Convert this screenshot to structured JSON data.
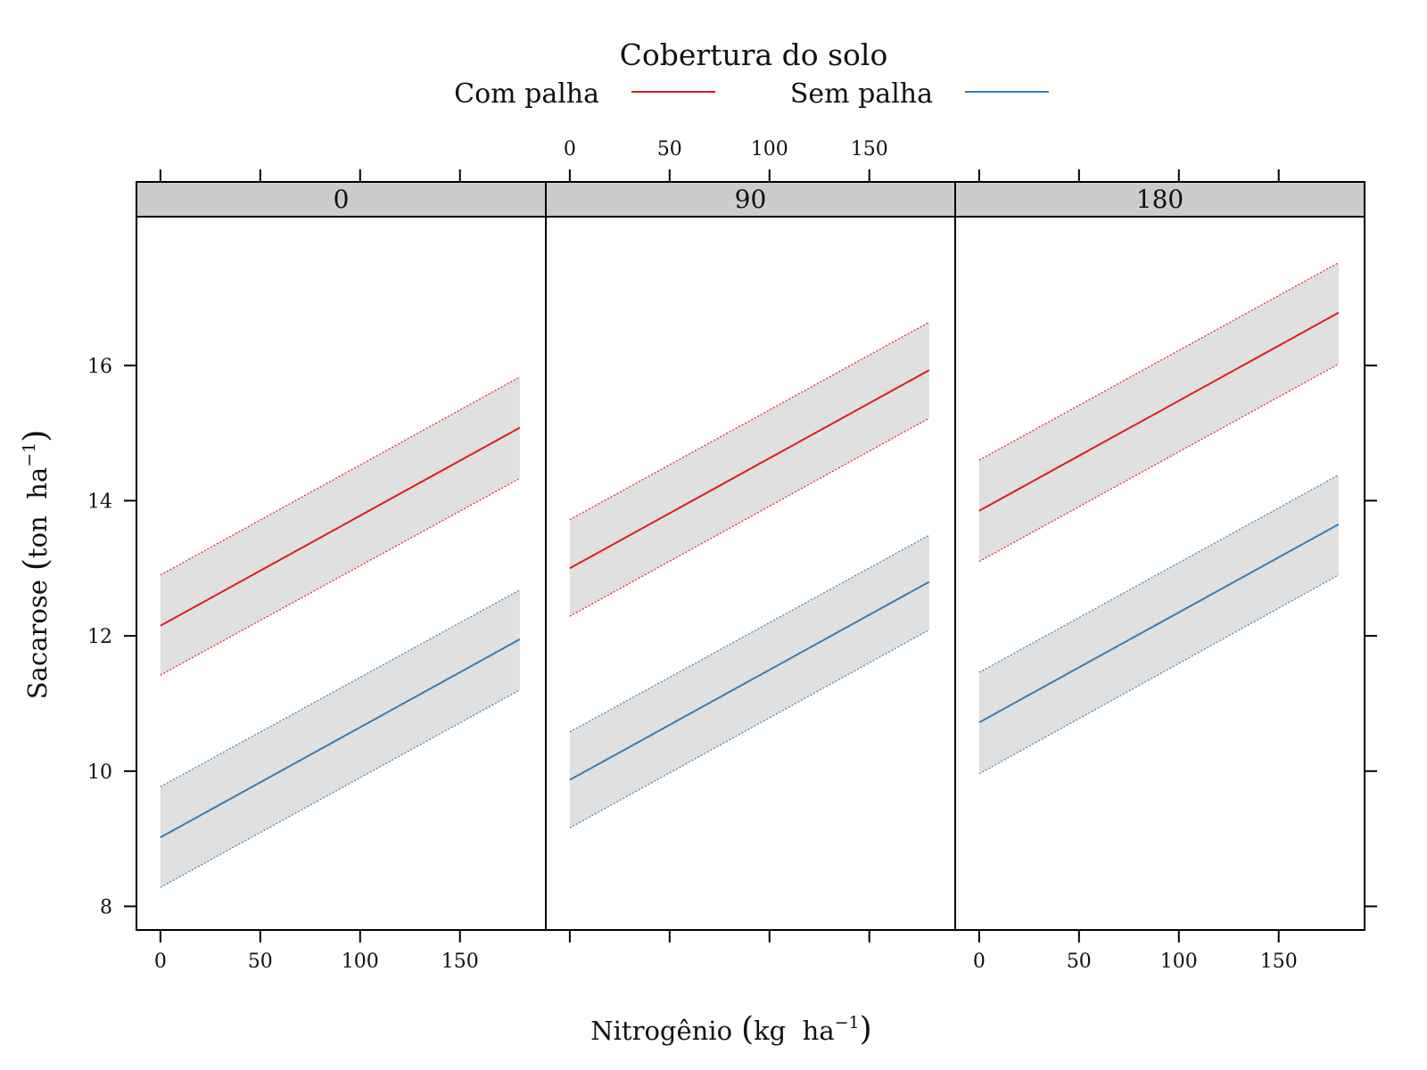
{
  "chart_data": {
    "type": "line",
    "legend": {
      "title": "Cobertura do solo",
      "placement": "top",
      "items": [
        {
          "name": "Com palha",
          "color": "#e41a1c"
        },
        {
          "name": "Sem palha",
          "color": "#377eb8"
        }
      ]
    },
    "xlabel": "Nitrogênio",
    "xlabel_unit": "kg  ha",
    "xlabel_exp": "−1",
    "ylabel": "Sacarose",
    "ylabel_unit": "ton  ha",
    "ylabel_exp": "−1",
    "xlim": [
      -12,
      193
    ],
    "ylim": [
      7.65,
      18.2
    ],
    "x_ticks": [
      0,
      50,
      100,
      150
    ],
    "y_ticks": [
      8,
      10,
      12,
      14,
      16
    ],
    "band_color": "#e0e0e0",
    "panels": [
      {
        "label": "0",
        "series": [
          {
            "name": "Com palha",
            "x": [
              0,
              180
            ],
            "fit": [
              12.15,
              15.08
            ],
            "lower": [
              11.42,
              14.33
            ],
            "upper": [
              12.9,
              15.83
            ]
          },
          {
            "name": "Sem palha",
            "x": [
              0,
              180
            ],
            "fit": [
              9.02,
              11.95
            ],
            "lower": [
              8.28,
              11.2
            ],
            "upper": [
              9.77,
              12.68
            ]
          }
        ]
      },
      {
        "label": "90",
        "series": [
          {
            "name": "Com palha",
            "x": [
              0,
              180
            ],
            "fit": [
              13.0,
              15.93
            ],
            "lower": [
              12.29,
              15.22
            ],
            "upper": [
              13.72,
              16.64
            ]
          },
          {
            "name": "Sem palha",
            "x": [
              0,
              180
            ],
            "fit": [
              9.87,
              12.8
            ],
            "lower": [
              9.16,
              12.09
            ],
            "upper": [
              10.58,
              13.49
            ]
          }
        ]
      },
      {
        "label": "180",
        "series": [
          {
            "name": "Com palha",
            "x": [
              0,
              180
            ],
            "fit": [
              13.85,
              16.78
            ],
            "lower": [
              13.1,
              16.02
            ],
            "upper": [
              14.6,
              17.52
            ]
          },
          {
            "name": "Sem palha",
            "x": [
              0,
              180
            ],
            "fit": [
              10.72,
              13.65
            ],
            "lower": [
              9.96,
              12.9
            ],
            "upper": [
              11.46,
              14.38
            ]
          }
        ]
      }
    ]
  }
}
